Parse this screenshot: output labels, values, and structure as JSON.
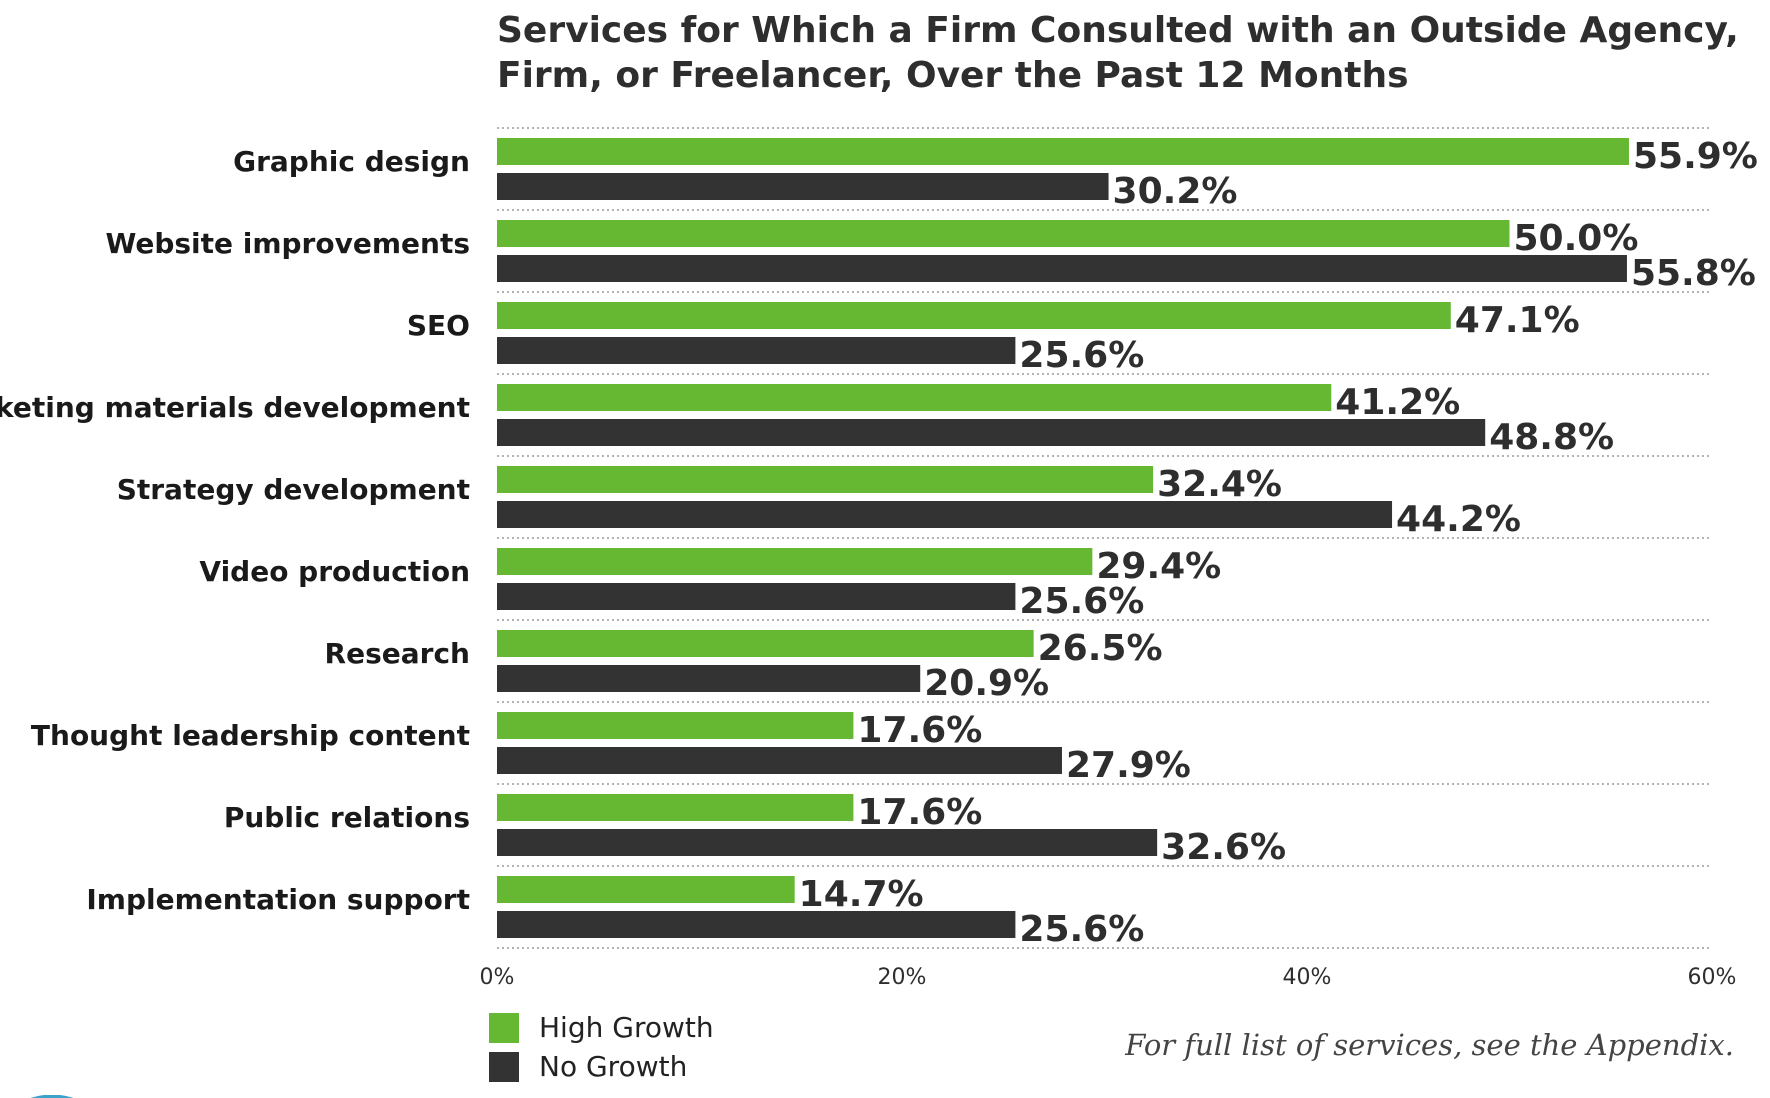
{
  "chart_data": {
    "type": "bar",
    "orientation": "horizontal",
    "title": "Services for Which a Firm Consulted with an Outside Agency, Firm, or Freelancer, Over the Past 12 Months",
    "categories": [
      "Graphic design",
      "Website improvements",
      "SEO",
      "Marketing materials development",
      "Strategy development",
      "Video production",
      "Research",
      "Thought leadership content",
      "Public relations",
      "Implementation support"
    ],
    "series": [
      {
        "name": "High Growth",
        "color": "#66b832",
        "values": [
          55.9,
          50.0,
          47.1,
          41.2,
          32.4,
          29.4,
          26.5,
          17.6,
          17.6,
          14.7
        ]
      },
      {
        "name": "No Growth",
        "color": "#333333",
        "values": [
          30.2,
          55.8,
          25.6,
          48.8,
          44.2,
          25.6,
          20.9,
          27.9,
          32.6,
          25.6
        ]
      }
    ],
    "xlim": [
      0,
      60
    ],
    "xticks": [
      "0%",
      "20%",
      "40%",
      "60%"
    ],
    "value_suffix": "%",
    "grid": "dotted separators between categories",
    "legend_position": "bottom-left"
  },
  "legend_labels": [
    "High Growth",
    "No Growth"
  ],
  "footnote": "For full list of services, see the Appendix."
}
